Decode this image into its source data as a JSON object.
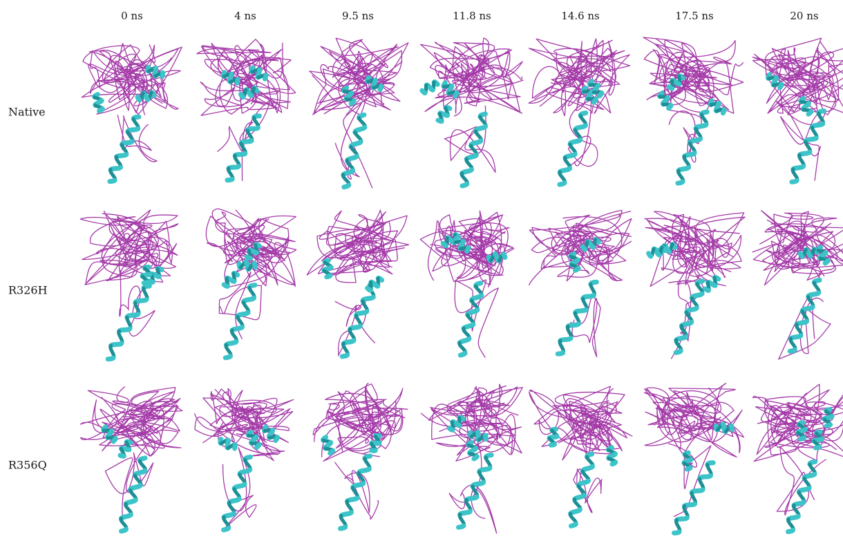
{
  "columns": [
    "0 ns",
    "4 ns",
    "9.5 ns",
    "11.8 ns",
    "14.6 ns",
    "17.5 ns",
    "20 ns"
  ],
  "rows": [
    "Native",
    "R326H",
    "R356Q"
  ],
  "colors": {
    "coil": "#a43aa8",
    "helix": "#3cc4c9",
    "helix_shade": "#1f8f96"
  },
  "icons": {
    "structure": "protein-ribbon-structure-icon"
  }
}
